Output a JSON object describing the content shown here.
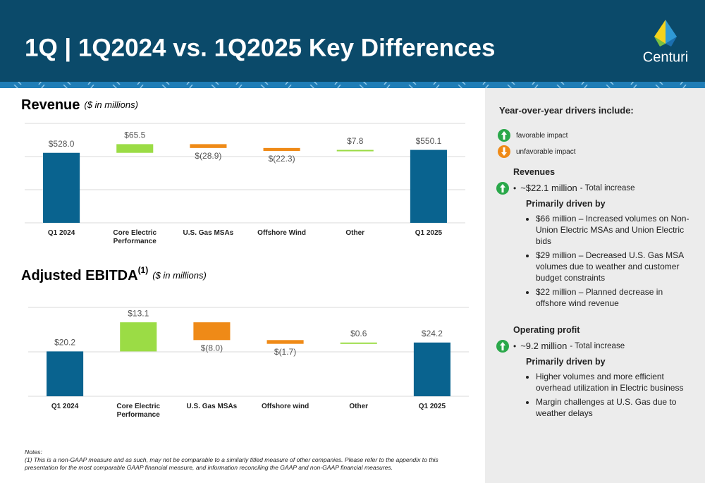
{
  "header": {
    "title": "1Q | 1Q2024 vs. 1Q2025 Key Differences",
    "logo": "Centuri"
  },
  "chart_data": [
    {
      "type": "waterfall",
      "title": "Revenue",
      "subtitle": "($ in millions)",
      "categories": [
        "Q1 2024",
        "Core Electric Performance",
        "U.S. Gas MSAs",
        "Offshore Wind",
        "Other",
        "Q1 2025"
      ],
      "values": [
        528.0,
        65.5,
        -28.9,
        -22.3,
        7.8,
        550.1
      ],
      "value_labels": [
        "$528.0",
        "$65.5",
        "$(28.9)",
        "$(22.3)",
        "$7.8",
        "$550.1"
      ],
      "colors": {
        "total": "#09638f",
        "increase": "#9bdc45",
        "decrease": "#ef8a17"
      },
      "ylim": [
        0,
        750
      ],
      "yticks": [
        0,
        250,
        500,
        750
      ],
      "grid": true
    },
    {
      "type": "waterfall",
      "title": "Adjusted EBITDA",
      "title_superscript": "(1)",
      "subtitle": "($ in millions)",
      "categories": [
        "Q1 2024",
        "Core Electric Performance",
        "U.S. Gas MSAs",
        "Offshore wind",
        "Other",
        "Q1 2025"
      ],
      "values": [
        20.2,
        13.1,
        -8.0,
        -1.7,
        0.6,
        24.2
      ],
      "value_labels": [
        "$20.2",
        "$13.1",
        "$(8.0)",
        "$(1.7)",
        "$0.6",
        "$24.2"
      ],
      "colors": {
        "total": "#09638f",
        "increase": "#9bdc45",
        "decrease": "#ef8a17"
      },
      "ylim": [
        0,
        40
      ],
      "yticks": [
        0,
        20,
        40
      ],
      "grid": true
    }
  ],
  "drivers": {
    "heading": "Year-over-year drivers include:",
    "legend": [
      "favorable impact",
      "unfavorable impact"
    ],
    "sections": [
      {
        "heading": "Revenues",
        "total": "~$22.1 million",
        "total_note": "- Total increase",
        "sub_heading": "Primarily driven by",
        "items": [
          "$66 million – Increased volumes on Non-Union Electric MSAs and Union Electric bids",
          "$29 million – Decreased U.S. Gas MSA volumes due to weather and customer budget constraints",
          "$22 million – Planned decrease in offshore wind revenue"
        ]
      },
      {
        "heading": "Operating profit",
        "total": "~9.2 million",
        "total_note": "- Total increase",
        "sub_heading": "Primarily driven by",
        "items": [
          "Higher volumes and more efficient overhead utilization in Electric business",
          "Margin challenges at U.S. Gas due to weather delays"
        ]
      }
    ]
  },
  "notes": {
    "heading": "Notes:",
    "text": "(1) This is a non-GAAP measure and as such, may not be comparable to a similarly titled measure of other companies. Please refer to the appendix to this presentation for the most comparable GAAP financial measure, and information reconciling the GAAP and non-GAAP financial measures."
  }
}
